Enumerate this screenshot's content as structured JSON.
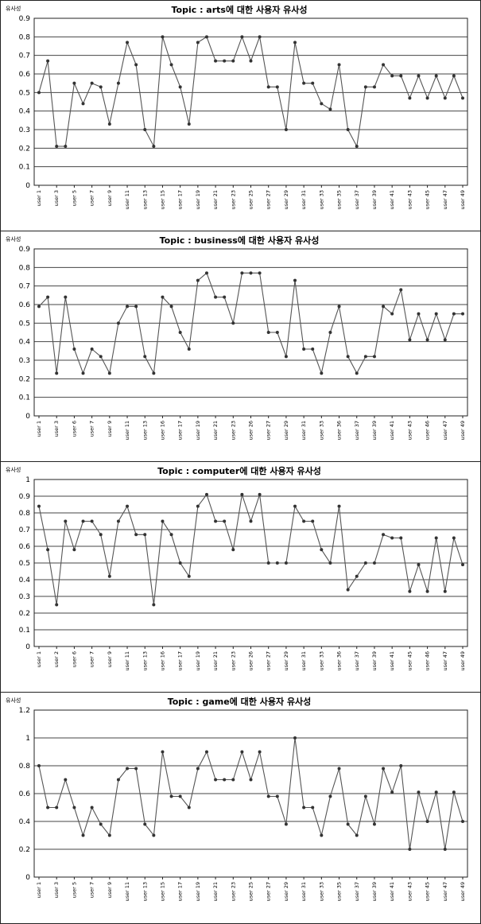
{
  "chart_data": [
    {
      "type": "line",
      "title": "Topic : arts에 대한 사용자 유사성",
      "ylabel": "유사성",
      "ylim": [
        0,
        0.9
      ],
      "yticks": [
        0,
        0.1,
        0.2,
        0.3,
        0.4,
        0.5,
        0.6,
        0.7,
        0.8,
        0.9
      ],
      "yticklabels": [
        "0",
        "0.1",
        "0.2",
        "0.3",
        "0.4",
        "0.5",
        "0.6",
        "0.7",
        "0.8",
        "0.9"
      ],
      "xticklabels": [
        "user 1",
        "user 3",
        "user 5",
        "user 7",
        "user 9",
        "user 11",
        "user 13",
        "user 15",
        "user 17",
        "user 19",
        "user 21",
        "user 23",
        "user 25",
        "user 27",
        "user 29",
        "user 31",
        "user 33",
        "user 35",
        "user 37",
        "user 39",
        "user 41",
        "user 43",
        "user 45",
        "user 47",
        "user 49"
      ],
      "grid": true,
      "values": [
        0.5,
        0.67,
        0.21,
        0.21,
        0.55,
        0.44,
        0.55,
        0.53,
        0.33,
        0.55,
        0.77,
        0.65,
        0.3,
        0.21,
        0.8,
        0.65,
        0.53,
        0.33,
        0.77,
        0.8,
        0.67,
        0.67,
        0.67,
        0.8,
        0.67,
        0.8,
        0.53,
        0.53,
        0.3,
        0.77,
        0.55,
        0.55,
        0.44,
        0.41,
        0.65,
        0.3,
        0.21,
        0.53,
        0.53,
        0.65,
        0.59,
        0.59,
        0.47,
        0.59,
        0.47,
        0.59,
        0.47,
        0.59,
        0.47
      ]
    },
    {
      "type": "line",
      "title": "Topic : business에 대한 사용자 유사성",
      "ylabel": "유사성",
      "ylim": [
        0,
        0.9
      ],
      "yticks": [
        0,
        0.1,
        0.2,
        0.3,
        0.4,
        0.5,
        0.6,
        0.7,
        0.8,
        0.9
      ],
      "yticklabels": [
        "0",
        "0.1",
        "0.2",
        "0.3",
        "0.4",
        "0.5",
        "0.6",
        "0.7",
        "0.8",
        "0.9"
      ],
      "xticklabels": [
        "user 1",
        "user 3",
        "user 6",
        "user 7",
        "user 9",
        "user 11",
        "user 13",
        "user 16",
        "user 17",
        "user 19",
        "user 21",
        "user 23",
        "user 26",
        "user 27",
        "user 29",
        "user 31",
        "user 33",
        "user 36",
        "user 37",
        "user 39",
        "user 41",
        "user 43",
        "user 46",
        "user 47",
        "user 49"
      ],
      "grid": true,
      "values": [
        0.59,
        0.64,
        0.23,
        0.64,
        0.36,
        0.23,
        0.36,
        0.32,
        0.23,
        0.5,
        0.59,
        0.59,
        0.32,
        0.23,
        0.64,
        0.59,
        0.45,
        0.36,
        0.73,
        0.77,
        0.64,
        0.64,
        0.5,
        0.77,
        0.77,
        0.77,
        0.45,
        0.45,
        0.32,
        0.73,
        0.36,
        0.36,
        0.23,
        0.45,
        0.59,
        0.32,
        0.23,
        0.32,
        0.32,
        0.59,
        0.55,
        0.68,
        0.41,
        0.55,
        0.41,
        0.55,
        0.41,
        0.55,
        0.55
      ]
    },
    {
      "type": "line",
      "title": "Topic : computer에 대한 사용자 유사성",
      "ylabel": "유사성",
      "ylim": [
        0,
        1
      ],
      "yticks": [
        0,
        0.1,
        0.2,
        0.3,
        0.4,
        0.5,
        0.6,
        0.7,
        0.8,
        0.9,
        1
      ],
      "yticklabels": [
        "0",
        "0.1",
        "0.2",
        "0.3",
        "0.4",
        "0.5",
        "0.6",
        "0.7",
        "0.8",
        "0.9",
        "1"
      ],
      "xticklabels": [
        "user 1",
        "user 2",
        "user 6",
        "user 7",
        "user 9",
        "user 11",
        "user 13",
        "user 16",
        "user 17",
        "user 19",
        "user 21",
        "user 23",
        "user 26",
        "user 27",
        "user 29",
        "user 31",
        "user 33",
        "user 36",
        "user 37",
        "user 39",
        "user 41",
        "user 45",
        "user 46",
        "user 47",
        "user 49"
      ],
      "grid": true,
      "values": [
        0.84,
        0.58,
        0.25,
        0.75,
        0.58,
        0.75,
        0.75,
        0.67,
        0.42,
        0.75,
        0.84,
        0.67,
        0.67,
        0.25,
        0.75,
        0.67,
        0.5,
        0.42,
        0.84,
        0.91,
        0.75,
        0.75,
        0.58,
        0.91,
        0.75,
        0.91,
        0.5,
        0.5,
        0.5,
        0.84,
        0.75,
        0.75,
        0.58,
        0.5,
        0.84,
        0.34,
        0.42,
        0.5,
        0.5,
        0.67,
        0.65,
        0.65,
        0.33,
        0.49,
        0.33,
        0.65,
        0.33,
        0.65,
        0.49
      ]
    },
    {
      "type": "line",
      "title": "Topic : game에 대한 사용자 유사성",
      "ylabel": "유사성",
      "ylim": [
        0,
        1.2
      ],
      "yticks": [
        0,
        0.2,
        0.4,
        0.6,
        0.8,
        1,
        1.2
      ],
      "yticklabels": [
        "0",
        "0.2",
        "0.4",
        "0.6",
        "0.8",
        "1",
        "1.2"
      ],
      "xticklabels": [
        "user 1",
        "user 3",
        "user 5",
        "user 7",
        "user 9",
        "user 11",
        "user 13",
        "user 15",
        "user 17",
        "user 19",
        "user 21",
        "user 23",
        "user 25",
        "user 27",
        "user 29",
        "user 31",
        "user 33",
        "user 35",
        "user 37",
        "user 39",
        "user 41",
        "user 43",
        "user 45",
        "user 47",
        "user 49"
      ],
      "grid": true,
      "values": [
        0.8,
        0.5,
        0.5,
        0.7,
        0.5,
        0.3,
        0.5,
        0.38,
        0.3,
        0.7,
        0.78,
        0.78,
        0.38,
        0.3,
        0.9,
        0.58,
        0.58,
        0.5,
        0.78,
        0.9,
        0.7,
        0.7,
        0.7,
        0.9,
        0.7,
        0.9,
        0.58,
        0.58,
        0.38,
        1.0,
        0.5,
        0.5,
        0.3,
        0.58,
        0.78,
        0.38,
        0.3,
        0.58,
        0.38,
        0.78,
        0.61,
        0.8,
        0.2,
        0.61,
        0.4,
        0.61,
        0.2,
        0.61,
        0.4
      ]
    }
  ],
  "colors": {
    "line": "#555555",
    "marker": "#333333",
    "grid": "#444444",
    "frame": "#222222"
  }
}
